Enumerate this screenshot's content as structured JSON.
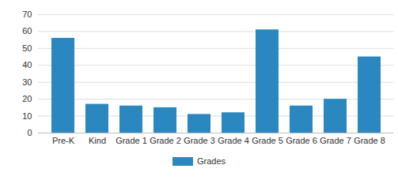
{
  "chart_data": {
    "type": "bar",
    "categories": [
      "Pre-K",
      "Kind",
      "Grade 1",
      "Grade 2",
      "Grade 3",
      "Grade 4",
      "Grade 5",
      "Grade 6",
      "Grade 7",
      "Grade 8"
    ],
    "series": [
      {
        "name": "Grades",
        "color": "#2a87c0",
        "values": [
          56,
          17,
          16,
          15,
          11,
          12,
          61,
          16,
          20,
          45
        ]
      }
    ],
    "ylim": [
      0,
      70
    ],
    "yticks": [
      0,
      10,
      20,
      30,
      40,
      50,
      60,
      70
    ],
    "grid": true,
    "legend": "bottom"
  }
}
